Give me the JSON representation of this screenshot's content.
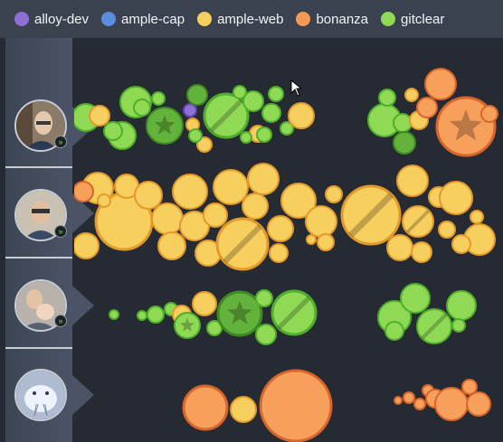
{
  "legend": [
    {
      "label": "alloy-dev",
      "color": "#8f6fd6"
    },
    {
      "label": "ample-cap",
      "color": "#5b8de0"
    },
    {
      "label": "ample-web",
      "color": "#f4cf5c"
    },
    {
      "label": "bonanza",
      "color": "#f59a52"
    },
    {
      "label": "gitclear",
      "color": "#8fd955"
    }
  ],
  "colors": {
    "gitclear": {
      "fill": "#8fd955",
      "stroke": "#4fae2b"
    },
    "ample-web": {
      "fill": "#f6cf5f",
      "stroke": "#e39a2a"
    },
    "bonanza": {
      "fill": "#f7a05c",
      "stroke": "#d8652b"
    },
    "alloy-dev": {
      "fill": "#8f6fd6",
      "stroke": "#6244b0"
    },
    "dark-green": {
      "fill": "#63b23b",
      "stroke": "#3e8a22"
    }
  },
  "rows": [
    {
      "user": "user-1",
      "badge": "double-chevron-up-icon"
    },
    {
      "user": "user-2",
      "badge": "double-chevron-up-icon"
    },
    {
      "user": "user-3",
      "badge": "double-chevron-up-icon"
    },
    {
      "user": "user-4"
    }
  ]
}
